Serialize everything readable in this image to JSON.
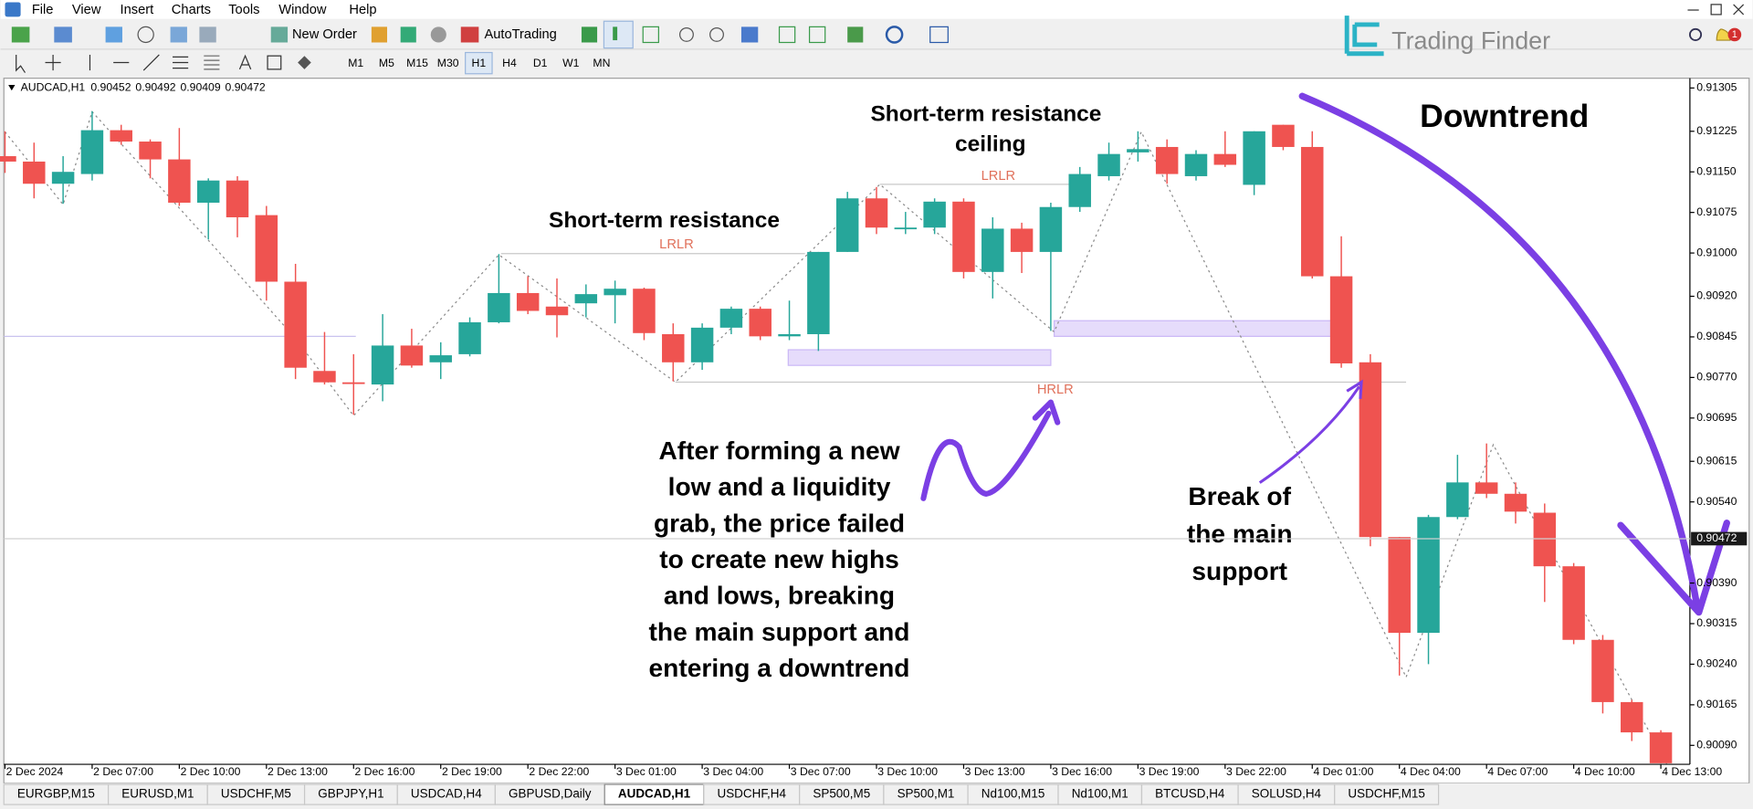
{
  "menu": [
    "File",
    "View",
    "Insert",
    "Charts",
    "Tools",
    "Window",
    "Help"
  ],
  "toolbar": {
    "new_order": "New Order",
    "autotrading": "AutoTrading"
  },
  "timeframes": [
    "M1",
    "M5",
    "M15",
    "M30",
    "H1",
    "H4",
    "D1",
    "W1",
    "MN"
  ],
  "logo": "Trading Finder",
  "notifications": 1,
  "tabs": [
    "EURGBP,M15",
    "EURUSD,M1",
    "USDCHF,M5",
    "GBPJPY,H1",
    "USDCAD,H4",
    "GBPUSD,Daily",
    "AUDCAD,H1",
    "USDCHF,H4",
    "SP500,M5",
    "SP500,M1",
    "Nd100,M15",
    "Nd100,M1",
    "BTCUSD,H4",
    "SOLUSD,H4",
    "USDCHF,M15"
  ],
  "active_tab": 6,
  "annotations": {
    "downtrend": "Downtrend",
    "resistance": "Short-term resistance",
    "ceiling": [
      "Short-term resistance",
      "ceiling"
    ],
    "explanation": [
      "After forming a new",
      "low and a liquidity",
      "grab, the price failed",
      "to create new highs",
      "and lows, breaking",
      "the main support and",
      "entering a downtrend"
    ],
    "break": [
      "Break of",
      "the main",
      "support"
    ],
    "level_labels": [
      "LRLR",
      "LRLR",
      "HRLR"
    ]
  },
  "chart_data": {
    "type": "candlestick",
    "symbol": "AUDCAD,H1",
    "header_values": [
      0.90452,
      0.90492,
      0.90409,
      0.90472
    ],
    "categories": [
      "2 Dec 2024",
      null,
      null,
      "2 Dec 07:00",
      null,
      null,
      "2 Dec 10:00",
      null,
      null,
      "2 Dec 13:00",
      null,
      null,
      "2 Dec 16:00",
      null,
      null,
      "2 Dec 19:00",
      null,
      null,
      "2 Dec 22:00",
      null,
      null,
      "3 Dec 01:00",
      null,
      null,
      "3 Dec 04:00",
      null,
      null,
      "3 Dec 07:00",
      null,
      null,
      "3 Dec 10:00",
      null,
      null,
      "3 Dec 13:00",
      null,
      null,
      "3 Dec 16:00",
      null,
      null,
      "3 Dec 19:00",
      null,
      null,
      "3 Dec 22:00",
      null,
      null,
      "4 Dec 01:00",
      null,
      null,
      "4 Dec 04:00",
      null,
      null,
      "4 Dec 07:00",
      null,
      null,
      "4 Dec 10:00",
      null,
      null,
      "4 Dec 13:00"
    ],
    "open": [
      0.91179,
      0.91169,
      0.91128,
      0.91146,
      0.91227,
      0.91206,
      0.91173,
      0.91093,
      0.91134,
      0.9107,
      0.90947,
      0.90782,
      0.90761,
      0.90757,
      0.90829,
      0.90798,
      0.90813,
      0.90872,
      0.90926,
      0.90901,
      0.90907,
      0.90922,
      0.90934,
      0.9085,
      0.90798,
      0.90862,
      0.90897,
      0.90846,
      0.9085,
      0.91002,
      0.91101,
      0.91047,
      0.91047,
      0.91095,
      0.90965,
      0.91045,
      0.91002,
      0.91085,
      0.91142,
      0.91186,
      0.91196,
      0.91142,
      0.91183,
      0.91126,
      0.91237,
      0.91196,
      0.90957,
      0.90798,
      0.90475,
      0.90298,
      0.90512,
      0.90576,
      0.90555,
      0.9052,
      0.90421,
      0.90285,
      0.9017,
      0.90114
    ],
    "high": [
      0.91225,
      0.91204,
      0.91179,
      0.91262,
      0.91237,
      0.9121,
      0.91231,
      0.91138,
      0.91142,
      0.91087,
      0.9098,
      0.90854,
      0.90813,
      0.90887,
      0.9086,
      0.90835,
      0.90881,
      0.90998,
      0.90957,
      0.90953,
      0.90942,
      0.90949,
      0.90936,
      0.9087,
      0.9087,
      0.90901,
      0.90901,
      0.90912,
      0.91002,
      0.91113,
      0.91122,
      0.91076,
      0.91101,
      0.91101,
      0.91066,
      0.91056,
      0.91093,
      0.91159,
      0.91204,
      0.91225,
      0.9121,
      0.9119,
      0.91225,
      0.91225,
      0.91237,
      0.91225,
      0.91031,
      0.90813,
      0.90475,
      0.90516,
      0.90627,
      0.90648,
      0.90576,
      0.90537,
      0.90427,
      0.90294,
      0.90174,
      0.90118
    ],
    "low": [
      0.91148,
      0.91101,
      0.91091,
      0.91134,
      0.912,
      0.91138,
      0.91087,
      0.91025,
      0.91029,
      0.90912,
      0.90767,
      0.90757,
      0.90701,
      0.90726,
      0.90788,
      0.90767,
      0.90809,
      0.9087,
      0.90887,
      0.90844,
      0.90881,
      0.9087,
      0.90839,
      0.90763,
      0.90784,
      0.9085,
      0.90839,
      0.90839,
      0.90819,
      0.91002,
      0.91035,
      0.91035,
      0.91035,
      0.90953,
      0.90916,
      0.90963,
      0.90856,
      0.91076,
      0.91134,
      0.91169,
      0.91128,
      0.91134,
      0.91159,
      0.91107,
      0.9119,
      0.90953,
      0.90788,
      0.90458,
      0.90219,
      0.9024,
      0.90508,
      0.90547,
      0.905,
      0.90355,
      0.90277,
      0.90149,
      0.90098,
      0.90057
    ],
    "close": [
      0.91169,
      0.91128,
      0.9115,
      0.91227,
      0.91206,
      0.91173,
      0.91093,
      0.91134,
      0.91066,
      0.90947,
      0.90788,
      0.90761,
      0.90759,
      0.90829,
      0.90792,
      0.90811,
      0.90872,
      0.90926,
      0.90893,
      0.90885,
      0.90924,
      0.90934,
      0.90852,
      0.90798,
      0.90862,
      0.90897,
      0.90846,
      0.9085,
      0.91002,
      0.91101,
      0.91047,
      0.91047,
      0.91095,
      0.90965,
      0.91045,
      0.91002,
      0.91085,
      0.91146,
      0.91183,
      0.91192,
      0.91146,
      0.91183,
      0.91163,
      0.91225,
      0.91196,
      0.90957,
      0.90796,
      0.90475,
      0.90298,
      0.90512,
      0.90576,
      0.90555,
      0.90522,
      0.90421,
      0.90285,
      0.9017,
      0.90114,
      0.90057
    ],
    "up_color": "#26a69a",
    "down_color": "#ef5350",
    "ylim": [
      0.90055,
      0.91321
    ],
    "yticks": [
      0.91305,
      0.91225,
      {
        "value": 0.9115,
        "label": "0.91150"
      },
      0.91075,
      {
        "value": 0.91,
        "label": "0.91000"
      },
      {
        "value": 0.9092,
        "label": "0.90920"
      },
      0.90845,
      {
        "value": 0.9077,
        "label": "0.90770"
      },
      0.90695,
      0.90615,
      {
        "value": 0.9054,
        "label": "0.90540"
      },
      {
        "value": 0.9039,
        "label": "0.90390"
      },
      0.90315,
      {
        "value": 0.9024,
        "label": "0.90240"
      },
      0.90165,
      {
        "value": 0.9009,
        "label": "0.90090"
      }
    ],
    "current_price": 0.90472
  }
}
